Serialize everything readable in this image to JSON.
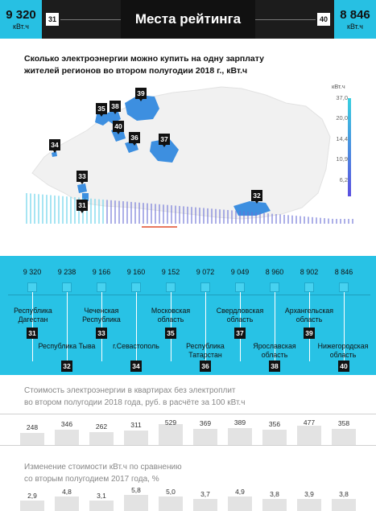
{
  "header": {
    "title": "Места рейтинга",
    "left": {
      "value": "9 320",
      "unit": "кВт.ч",
      "rank": "31"
    },
    "right": {
      "value": "8 846",
      "unit": "кВт.ч",
      "rank": "40"
    }
  },
  "map": {
    "title_line1": "Сколько электроэнергии можно купить на одну зарплату",
    "title_line2": "жителей регионов во втором полугодии 2018 г., кВт.ч",
    "legend_unit": "кВт.ч",
    "legend_ticks": [
      "37,0",
      "20,0",
      "14,4",
      "10,9",
      "6,2"
    ],
    "pins": [
      "35",
      "38",
      "39",
      "40",
      "36",
      "37",
      "34",
      "33",
      "31",
      "32"
    ],
    "colors": {
      "low": "#2f5fd6",
      "high": "#38d0e0",
      "accent": "#28c2e5"
    }
  },
  "chart_data": [
    {
      "type": "bar",
      "title": "Места рейтинга",
      "categories": [
        "Республика Дагестан",
        "Республика Тыва",
        "Чеченская Республика",
        "г.Севастополь",
        "Московская область",
        "Республика Татарстан",
        "Свердловская область",
        "Ярославская область",
        "Архангельская область",
        "Нижегородская область"
      ],
      "ranks": [
        "31",
        "32",
        "33",
        "34",
        "35",
        "36",
        "37",
        "38",
        "39",
        "40"
      ],
      "value_labels": [
        "9 320",
        "9 238",
        "9 166",
        "9 160",
        "9 152",
        "9 072",
        "9 049",
        "8 960",
        "8 902",
        "8 846"
      ],
      "values": [
        9320,
        9238,
        9166,
        9160,
        9152,
        9072,
        9049,
        8960,
        8902,
        8846
      ]
    },
    {
      "type": "bar",
      "title": "Стоимость электроэнергии в квартирах без электроплит во втором полугодии 2018 года, руб. в расчёте за 100 кВт.ч",
      "title_line1": "Стоимость электроэнергии в квартирах без электроплит",
      "title_line2": "во втором полугодии 2018 года, руб. в расчёте за 100 кВт.ч",
      "labels": [
        "248",
        "346",
        "262",
        "311",
        "529",
        "369",
        "389",
        "356",
        "477",
        "358"
      ],
      "values": [
        248,
        346,
        262,
        311,
        529,
        369,
        389,
        356,
        477,
        358
      ]
    },
    {
      "type": "bar",
      "title": "Изменение стоимости кВт.ч по сравнению со вторым полугодием 2017 года, %",
      "title_line1": "Изменение стоимости кВт.ч  по сравнению",
      "title_line2": "со вторым полугодием 2017 года, %",
      "labels": [
        "2,9",
        "4,8",
        "3,1",
        "5,8",
        "5,0",
        "3,7",
        "4,9",
        "3,8",
        "3,9",
        "3,8"
      ],
      "values": [
        2.9,
        4.8,
        3.1,
        5.8,
        5.0,
        3.7,
        4.9,
        3.8,
        3.9,
        3.8
      ]
    }
  ]
}
